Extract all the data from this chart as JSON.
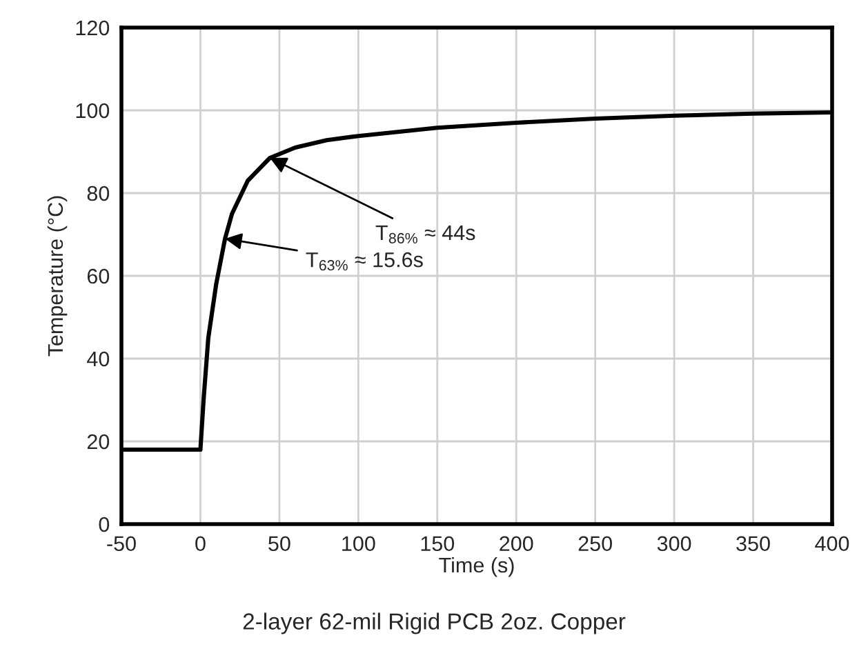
{
  "chart_data": {
    "type": "line",
    "xlabel": "Time (s)",
    "ylabel": "Temperature (°C)",
    "series": [
      {
        "color": "#000000",
        "x": [
          -50,
          0,
          2,
          5,
          10,
          15.6,
          20,
          30,
          44,
          60,
          80,
          100,
          150,
          200,
          250,
          300,
          350,
          400
        ],
        "values": [
          18,
          18,
          30,
          45,
          58,
          69,
          75,
          83,
          88.5,
          91,
          92.8,
          93.8,
          95.8,
          97,
          98,
          98.7,
          99.2,
          99.5
        ]
      }
    ],
    "xlim": [
      -50,
      400
    ],
    "xticks": [
      -50,
      0,
      50,
      100,
      150,
      200,
      250,
      300,
      350,
      400
    ],
    "ylim": [
      0,
      120
    ],
    "yticks": [
      0,
      20,
      40,
      60,
      80,
      100,
      120
    ],
    "grid": true,
    "marker": "none",
    "line_style": "solid",
    "annotations": [
      {
        "text": "T$_{86%}$ ≈ 44s",
        "x": 44,
        "y": 88.5
      },
      {
        "text": "T$_{63%}$ ≈ 15.6s",
        "x": 15.6,
        "y": 69
      },
      "2-layer 62-mil Rigid PCB 2oz. Copper"
    ]
  }
}
